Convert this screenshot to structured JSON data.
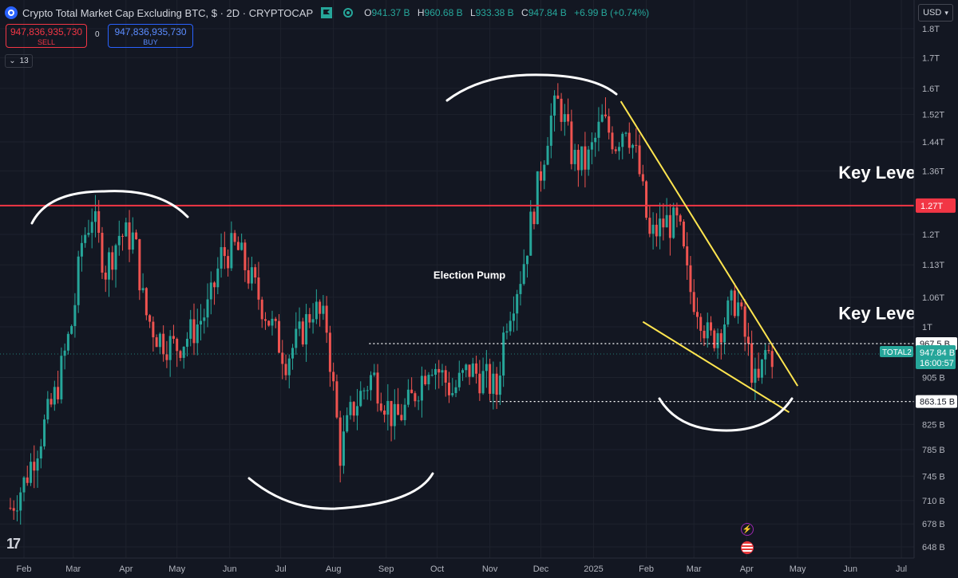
{
  "header": {
    "title": "Crypto Total Market Cap Excluding BTC, $ · 2D · CRYPTOCAP",
    "ohlc": [
      {
        "key": "O",
        "value": "941.37 B"
      },
      {
        "key": "H",
        "value": "960.68 B"
      },
      {
        "key": "L",
        "value": "933.38 B"
      },
      {
        "key": "C",
        "value": "947.84 B"
      }
    ],
    "change": "+6.99 B (+0.74%)"
  },
  "trade": {
    "sell_price": "947,836,935,730",
    "sell_label": "SELL",
    "spread": "0",
    "buy_price": "947,836,935,730",
    "buy_label": "BUY"
  },
  "indicator_count": "13",
  "currency": "USD",
  "chart_data": {
    "type": "candlestick",
    "symbol": "TOTAL2",
    "timeframe": "2D",
    "scale": "log",
    "y_ticks": [
      "1.8T",
      "1.7T",
      "1.6T",
      "1.52T",
      "1.44T",
      "1.36T",
      "1.2T",
      "1.13T",
      "1.06T",
      "1T",
      "905 B",
      "825 B",
      "785 B",
      "745 B",
      "710 B",
      "678 B",
      "648 B"
    ],
    "x_ticks": [
      "Feb",
      "Mar",
      "Apr",
      "May",
      "Jun",
      "Jul",
      "Aug",
      "Sep",
      "Oct",
      "Nov",
      "Dec",
      "2025",
      "Feb",
      "Mar",
      "Apr",
      "May",
      "Jun",
      "Jul"
    ],
    "ylim": [
      630,
      1880
    ],
    "colors": {
      "up": "#26a69a",
      "down": "#ef5350",
      "bg": "#131722",
      "grid": "#1e222d",
      "key_line": "#f23645",
      "wedge": "#ffe54f",
      "annotation": "#ffffff"
    },
    "price_path": [
      {
        "date": "2024-01-24",
        "value": 700
      },
      {
        "date": "2024-02-01",
        "value": 735
      },
      {
        "date": "2024-02-10",
        "value": 800
      },
      {
        "date": "2024-02-20",
        "value": 880
      },
      {
        "date": "2024-03-01",
        "value": 1020
      },
      {
        "date": "2024-03-06",
        "value": 1180
      },
      {
        "date": "2024-03-12",
        "value": 1250
      },
      {
        "date": "2024-03-20",
        "value": 1120
      },
      {
        "date": "2024-03-28",
        "value": 1200
      },
      {
        "date": "2024-04-06",
        "value": 1190
      },
      {
        "date": "2024-04-12",
        "value": 1030
      },
      {
        "date": "2024-04-20",
        "value": 980
      },
      {
        "date": "2024-04-30",
        "value": 960
      },
      {
        "date": "2024-05-10",
        "value": 990
      },
      {
        "date": "2024-05-20",
        "value": 1040
      },
      {
        "date": "2024-05-27",
        "value": 1150
      },
      {
        "date": "2024-06-05",
        "value": 1170
      },
      {
        "date": "2024-06-12",
        "value": 1110
      },
      {
        "date": "2024-06-22",
        "value": 1030
      },
      {
        "date": "2024-07-04",
        "value": 940
      },
      {
        "date": "2024-07-12",
        "value": 980
      },
      {
        "date": "2024-07-20",
        "value": 1040
      },
      {
        "date": "2024-07-28",
        "value": 1000
      },
      {
        "date": "2024-08-05",
        "value": 780
      },
      {
        "date": "2024-08-12",
        "value": 850
      },
      {
        "date": "2024-08-24",
        "value": 910
      },
      {
        "date": "2024-09-06",
        "value": 830
      },
      {
        "date": "2024-09-15",
        "value": 860
      },
      {
        "date": "2024-09-27",
        "value": 940
      },
      {
        "date": "2024-10-10",
        "value": 880
      },
      {
        "date": "2024-10-20",
        "value": 920
      },
      {
        "date": "2024-10-30",
        "value": 900
      },
      {
        "date": "2024-11-05",
        "value": 880
      },
      {
        "date": "2024-11-10",
        "value": 1010
      },
      {
        "date": "2024-11-20",
        "value": 1120
      },
      {
        "date": "2024-12-01",
        "value": 1360
      },
      {
        "date": "2024-12-06",
        "value": 1500
      },
      {
        "date": "2024-12-12",
        "value": 1560
      },
      {
        "date": "2024-12-20",
        "value": 1390
      },
      {
        "date": "2024-12-28",
        "value": 1380
      },
      {
        "date": "2025-01-06",
        "value": 1500
      },
      {
        "date": "2025-01-14",
        "value": 1440
      },
      {
        "date": "2025-01-20",
        "value": 1500
      },
      {
        "date": "2025-01-27",
        "value": 1380
      },
      {
        "date": "2025-02-03",
        "value": 1190
      },
      {
        "date": "2025-02-12",
        "value": 1230
      },
      {
        "date": "2025-02-20",
        "value": 1220
      },
      {
        "date": "2025-02-26",
        "value": 1080
      },
      {
        "date": "2025-03-04",
        "value": 1040
      },
      {
        "date": "2025-03-10",
        "value": 970
      },
      {
        "date": "2025-03-20",
        "value": 1020
      },
      {
        "date": "2025-03-26",
        "value": 1060
      },
      {
        "date": "2025-03-31",
        "value": 980
      },
      {
        "date": "2025-04-07",
        "value": 880
      },
      {
        "date": "2025-04-12",
        "value": 950
      },
      {
        "date": "2025-04-16",
        "value": 947.84
      }
    ],
    "key_level": {
      "value": "1.27T",
      "label": "Key Level"
    },
    "key_level_2_label": "Key Level",
    "dotted_levels": [
      {
        "value": "967.5 B",
        "from_date": "2024-08-22"
      },
      {
        "value": "863.15 B",
        "from_date": "2024-11-01"
      }
    ],
    "current_price": {
      "symbol": "TOTAL2",
      "value": "947.84 B",
      "countdown": "16:00:57"
    },
    "annotations": [
      {
        "text": "Election Pump",
        "date": "2024-10-20",
        "value": 1100
      },
      {
        "text": "Key Level",
        "date": "2025-05-25",
        "value": 1340
      },
      {
        "text": "Key Level",
        "date": "2025-05-25",
        "value": 1015
      }
    ],
    "wedge": {
      "upper": [
        {
          "date": "2025-01-17",
          "value": 1560
        },
        {
          "date": "2025-05-01",
          "value": 890
        }
      ],
      "lower": [
        {
          "date": "2025-01-30",
          "value": 1010
        },
        {
          "date": "2025-04-26",
          "value": 845
        }
      ]
    }
  }
}
